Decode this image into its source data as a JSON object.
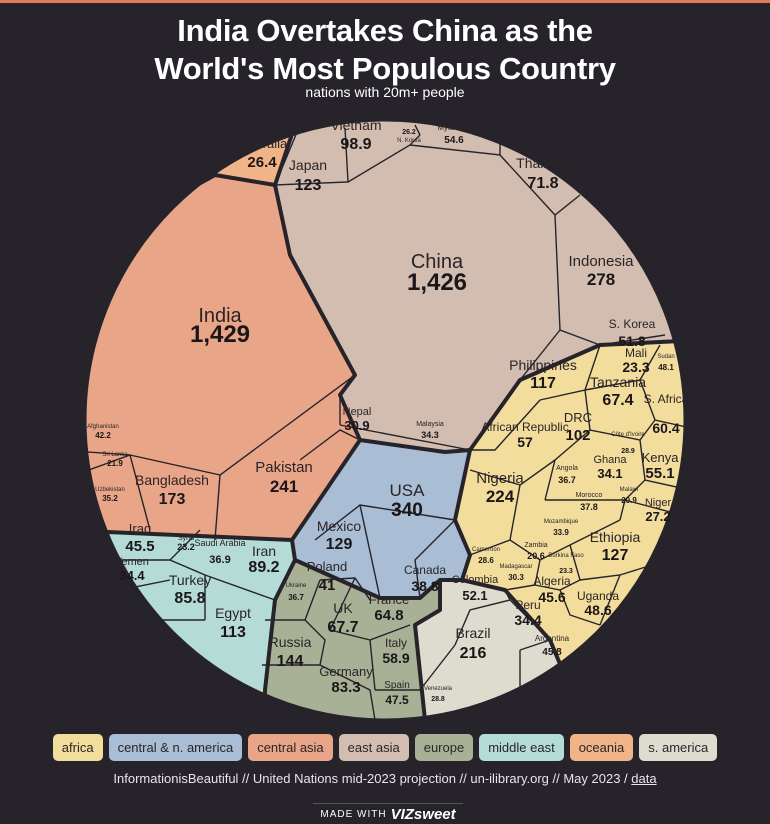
{
  "header": {
    "title": "India Overtakes China as the\nWorld's Most Populous Country",
    "subtitle": "nations with 20m+ people"
  },
  "colors": {
    "africa": "#f2dd9d",
    "central_n_america": "#a9bdd4",
    "central_asia": "#e9a588",
    "east_asia": "#d2bdb0",
    "europe": "#a8b095",
    "middle_east": "#b4dbd6",
    "oceania": "#f0b488",
    "s_america": "#dedbcf",
    "border": "#26232a"
  },
  "legend": [
    {
      "label": "africa",
      "color": "#f2dd9d"
    },
    {
      "label": "central & n. america",
      "color": "#a9bdd4"
    },
    {
      "label": "central asia",
      "color": "#e9a588"
    },
    {
      "label": "east asia",
      "color": "#d2bdb0"
    },
    {
      "label": "europe",
      "color": "#a8b095"
    },
    {
      "label": "middle east",
      "color": "#b4dbd6"
    },
    {
      "label": "oceania",
      "color": "#f0b488"
    },
    {
      "label": "s. america",
      "color": "#dedbcf"
    }
  ],
  "chart_data": {
    "type": "voronoi-treemap",
    "value_unit": "millions",
    "series": [
      {
        "name": "east asia",
        "items": [
          {
            "label": "China",
            "value": "1,426"
          },
          {
            "label": "Indonesia",
            "value": "278"
          },
          {
            "label": "Japan",
            "value": "123"
          },
          {
            "label": "Philippines",
            "value": "117"
          },
          {
            "label": "Vietnam",
            "value": "98.9"
          },
          {
            "label": "Thailand",
            "value": "71.8"
          },
          {
            "label": "Myanmar",
            "value": "54.6"
          },
          {
            "label": "S. Korea",
            "value": "51.8"
          },
          {
            "label": "Malaysia",
            "value": "34.3"
          },
          {
            "label": "N. Korea",
            "value": "26.2"
          }
        ]
      },
      {
        "name": "central asia",
        "items": [
          {
            "label": "India",
            "value": "1,429"
          },
          {
            "label": "Pakistan",
            "value": "241"
          },
          {
            "label": "Bangladesh",
            "value": "173"
          },
          {
            "label": "Afghanistan",
            "value": "42.2"
          },
          {
            "label": "Uzbekistan",
            "value": "35.2"
          },
          {
            "label": "Nepal",
            "value": "30.9"
          },
          {
            "label": "Sri Lanka",
            "value": "21.9"
          }
        ]
      },
      {
        "name": "oceania",
        "items": [
          {
            "label": "Australia",
            "value": "26.4"
          }
        ]
      },
      {
        "name": "central & n. america",
        "items": [
          {
            "label": "USA",
            "value": "340"
          },
          {
            "label": "Mexico",
            "value": "129"
          },
          {
            "label": "Canada",
            "value": "38.8"
          }
        ]
      },
      {
        "name": "middle east",
        "items": [
          {
            "label": "Egypt",
            "value": "113"
          },
          {
            "label": "Iran",
            "value": "89.2"
          },
          {
            "label": "Turkey",
            "value": "85.8"
          },
          {
            "label": "Iraq",
            "value": "45.5"
          },
          {
            "label": "Saudi Arabia",
            "value": "36.9"
          },
          {
            "label": "Yemen",
            "value": "34.4"
          },
          {
            "label": "Syria",
            "value": "23.2"
          }
        ]
      },
      {
        "name": "europe",
        "items": [
          {
            "label": "Russia",
            "value": "144"
          },
          {
            "label": "Germany",
            "value": "83.3"
          },
          {
            "label": "UK",
            "value": "67.7"
          },
          {
            "label": "France",
            "value": "64.8"
          },
          {
            "label": "Italy",
            "value": "58.9"
          },
          {
            "label": "Spain",
            "value": "47.5"
          },
          {
            "label": "Poland",
            "value": "41"
          },
          {
            "label": "Ukraine",
            "value": "36.7"
          }
        ]
      },
      {
        "name": "s. america",
        "items": [
          {
            "label": "Brazil",
            "value": "216"
          },
          {
            "label": "Colombia",
            "value": "52.1"
          },
          {
            "label": "Argentina",
            "value": "45.8"
          },
          {
            "label": "Peru",
            "value": "34.4"
          },
          {
            "label": "Venezuela",
            "value": "28.8"
          }
        ]
      },
      {
        "name": "africa",
        "items": [
          {
            "label": "Nigeria",
            "value": "224"
          },
          {
            "label": "Ethiopia",
            "value": "127"
          },
          {
            "label": "DRC",
            "value": "102"
          },
          {
            "label": "Tanzania",
            "value": "67.4"
          },
          {
            "label": "S. Africa",
            "value": "60.4"
          },
          {
            "label": "Kenya",
            "value": "55.1"
          },
          {
            "label": "Sudan",
            "value": "48.1"
          },
          {
            "label": "Uganda",
            "value": "48.6"
          },
          {
            "label": "Algeria",
            "value": "45.6"
          },
          {
            "label": "Morocco",
            "value": "37.8"
          },
          {
            "label": "Angola",
            "value": "36.7"
          },
          {
            "label": "Ghana",
            "value": "34.1"
          },
          {
            "label": "Mozambique",
            "value": "33.9"
          },
          {
            "label": "Madagascar",
            "value": "30.3"
          },
          {
            "label": "Côte d'Ivoire",
            "value": "28.9"
          },
          {
            "label": "Cameroon",
            "value": "28.6"
          },
          {
            "label": "Niger",
            "value": "27.2"
          },
          {
            "label": "Mali",
            "value": "23.3"
          },
          {
            "label": "Burkina Faso",
            "value": "23.3"
          },
          {
            "label": "Malawi",
            "value": "20.9"
          },
          {
            "label": "Zambia",
            "value": "20.6"
          },
          {
            "label": "African Republic",
            "value": "57"
          }
        ]
      }
    ]
  },
  "footer": {
    "text": "InformationisBeautiful // United Nations mid-2023 projection // un-ilibrary.org // May 2023 / ",
    "link": "data"
  },
  "made_with": {
    "prefix": "MADE WITH",
    "brand": "VIZsweet"
  }
}
